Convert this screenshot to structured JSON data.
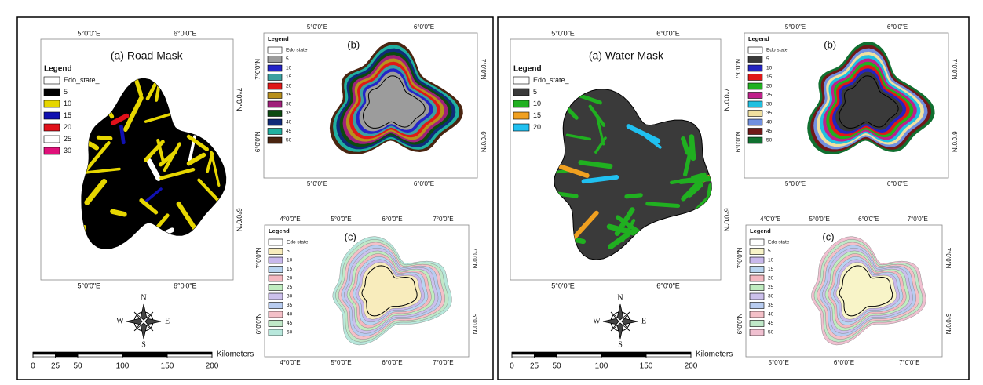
{
  "panels": [
    {
      "map_a": {
        "title": "(a) Road Mask",
        "legend_title": "Legend",
        "legend": [
          {
            "label": "Edo_state_",
            "color": "#ffffff"
          },
          {
            "label": "5",
            "color": "#000000"
          },
          {
            "label": "10",
            "color": "#e6d600"
          },
          {
            "label": "15",
            "color": "#1010b0"
          },
          {
            "label": "20",
            "color": "#e0101a"
          },
          {
            "label": "25",
            "color": "#ffffff"
          },
          {
            "label": "30",
            "color": "#e0107a"
          }
        ],
        "top_labels": [
          "5°0'0\"E",
          "6°0'0\"E"
        ],
        "bottom_labels": [
          "5°0'0\"E",
          "6°0'0\"E"
        ],
        "left_labels": [],
        "right_labels": [
          "7°0'0\"N",
          "6°0'0\"N"
        ]
      },
      "map_b": {
        "title": "(b)",
        "legend_title": "Legend",
        "legend": [
          {
            "label": "Edo state",
            "color": "#ffffff"
          },
          {
            "label": "5",
            "color": "#9c9c9c"
          },
          {
            "label": "10",
            "color": "#2424c8"
          },
          {
            "label": "15",
            "color": "#3ca0a0"
          },
          {
            "label": "20",
            "color": "#e01818"
          },
          {
            "label": "25",
            "color": "#b8901c"
          },
          {
            "label": "30",
            "color": "#a0207a"
          },
          {
            "label": "35",
            "color": "#0c4a10"
          },
          {
            "label": "40",
            "color": "#102a78"
          },
          {
            "label": "45",
            "color": "#20b0a0"
          },
          {
            "label": "50",
            "color": "#4a2410"
          }
        ],
        "top_labels": [
          "5°0'0\"E",
          "6°0'0\"E"
        ],
        "bottom_labels": [
          "5°0'0\"E",
          "6°0'0\"E"
        ],
        "left_labels": [
          "7°0'0\"N",
          "6°0'0\"N"
        ],
        "right_labels": [
          "7°0'0\"N",
          "6°0'0\"N"
        ]
      },
      "map_c": {
        "title": "(c)",
        "legend_title": "Legend",
        "legend": [
          {
            "label": "Edo state",
            "color": "#ffffff"
          },
          {
            "label": "5",
            "color": "#f8ecbc"
          },
          {
            "label": "10",
            "color": "#c8b8ec"
          },
          {
            "label": "15",
            "color": "#b8d4f0"
          },
          {
            "label": "20",
            "color": "#f4b8c0"
          },
          {
            "label": "25",
            "color": "#c0ecc0"
          },
          {
            "label": "30",
            "color": "#ccc0ec"
          },
          {
            "label": "35",
            "color": "#b8ccf0"
          },
          {
            "label": "40",
            "color": "#f4c0c8"
          },
          {
            "label": "45",
            "color": "#c0e8c8"
          },
          {
            "label": "50",
            "color": "#b8e8dc"
          }
        ],
        "top_labels": [
          "4°0'0\"E",
          "5°0'0\"E",
          "6°0'0\"E",
          "7°0'0\"E"
        ],
        "bottom_labels": [
          "4°0'0\"E",
          "5°0'0\"E",
          "6°0'0\"E",
          "7°0'0\"E"
        ],
        "left_labels": [
          "7°0'0\"N",
          "6°0'0\"N"
        ],
        "right_labels": [
          "7°0'0\"N",
          "6°0'0\"N"
        ]
      },
      "compass": {
        "n": "N",
        "s": "S",
        "e": "E",
        "w": "W"
      },
      "scale": {
        "unit": "Kilometers",
        "ticks": [
          0,
          25,
          50,
          100,
          150,
          200
        ]
      }
    },
    {
      "map_a": {
        "title": "(a) Water Mask",
        "legend_title": "Legend",
        "legend": [
          {
            "label": "Edo_state_",
            "color": "#ffffff"
          },
          {
            "label": "5",
            "color": "#3a3a3a"
          },
          {
            "label": "10",
            "color": "#20b020"
          },
          {
            "label": "15",
            "color": "#f0a020"
          },
          {
            "label": "20",
            "color": "#20c0f0"
          }
        ],
        "top_labels": [
          "5°0'0\"E",
          "6°0'0\"E"
        ],
        "bottom_labels": [
          "5°0'0\"E",
          "6°0'0\"E"
        ],
        "left_labels": [],
        "right_labels": [
          "7°0'0\"N",
          "6°0'0\"N"
        ]
      },
      "map_b": {
        "title": "(b)",
        "legend_title": "Legend",
        "legend": [
          {
            "label": "Edo state",
            "color": "#ffffff"
          },
          {
            "label": "5",
            "color": "#3a3a3a"
          },
          {
            "label": "10",
            "color": "#2424c0"
          },
          {
            "label": "15",
            "color": "#e01818"
          },
          {
            "label": "20",
            "color": "#20b020"
          },
          {
            "label": "25",
            "color": "#c0208a"
          },
          {
            "label": "30",
            "color": "#20c0e0"
          },
          {
            "label": "35",
            "color": "#f0e0a0"
          },
          {
            "label": "40",
            "color": "#7090e0"
          },
          {
            "label": "45",
            "color": "#701818"
          },
          {
            "label": "50",
            "color": "#107030"
          }
        ],
        "top_labels": [
          "5°0'0\"E",
          "6°0'0\"E"
        ],
        "bottom_labels": [
          "5°0'0\"E",
          "6°0'0\"E"
        ],
        "left_labels": [
          "7°0'0\"N",
          "6°0'0\"N"
        ],
        "right_labels": [
          "7°0'0\"N",
          "6°0'0\"N"
        ]
      },
      "map_c": {
        "title": "(c)",
        "legend_title": "Legend",
        "legend": [
          {
            "label": "Edo state",
            "color": "#ffffff"
          },
          {
            "label": "5",
            "color": "#f8f4c8"
          },
          {
            "label": "10",
            "color": "#c8b8ec"
          },
          {
            "label": "15",
            "color": "#b8d4f0"
          },
          {
            "label": "20",
            "color": "#f4b8c0"
          },
          {
            "label": "25",
            "color": "#c0ecc0"
          },
          {
            "label": "30",
            "color": "#ccc0ec"
          },
          {
            "label": "35",
            "color": "#b8ccf0"
          },
          {
            "label": "40",
            "color": "#f4c0c8"
          },
          {
            "label": "45",
            "color": "#c0e8c8"
          },
          {
            "label": "50",
            "color": "#f0c0d0"
          }
        ],
        "top_labels": [
          "4°0'0\"E",
          "5°0'0\"E",
          "6°0'0\"E",
          "7°0'0\"E"
        ],
        "bottom_labels": [
          "5°0'0\"E",
          "6°0'0\"E",
          "7°0'0\"E"
        ],
        "left_labels": [
          "7°0'0\"N",
          "6°0'0\"N"
        ],
        "right_labels": [
          "7°0'0\"N",
          "6°0'0\"N"
        ]
      },
      "compass": {
        "n": "N",
        "s": "S",
        "e": "E",
        "w": "W"
      },
      "scale": {
        "unit": "Kilometers",
        "ticks": [
          0,
          25,
          50,
          100,
          150,
          200
        ]
      }
    }
  ]
}
